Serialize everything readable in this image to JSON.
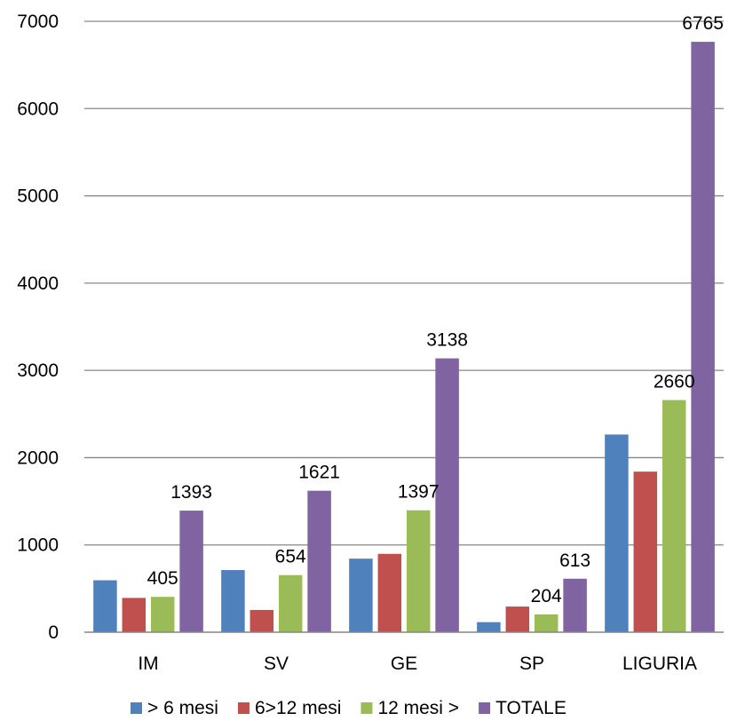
{
  "chart_data": {
    "type": "bar",
    "title": "",
    "xlabel": "",
    "ylabel": "",
    "categories": [
      "IM",
      "SV",
      "GE",
      "SP",
      "LIGURIA"
    ],
    "ylim": [
      0,
      7000
    ],
    "yticks": [
      0,
      1000,
      2000,
      3000,
      4000,
      5000,
      6000,
      7000
    ],
    "grid": true,
    "legend_position": "bottom",
    "series": [
      {
        "name": "> 6 mesi",
        "color": "#4F81BD",
        "values": [
          595,
          712,
          843,
          115,
          2265
        ],
        "labels": [
          null,
          null,
          null,
          null,
          null
        ]
      },
      {
        "name": "6>12 mesi",
        "color": "#C0504D",
        "values": [
          393,
          255,
          898,
          294,
          1840
        ],
        "labels": [
          null,
          null,
          null,
          null,
          null
        ]
      },
      {
        "name": "12 mesi >",
        "color": "#9BBB59",
        "values": [
          405,
          654,
          1397,
          204,
          2660
        ],
        "labels": [
          "405",
          "654",
          "1397",
          "204",
          "2660"
        ]
      },
      {
        "name": "TOTALE",
        "color": "#8064A2",
        "values": [
          1393,
          1621,
          3138,
          613,
          6765
        ],
        "labels": [
          "1393",
          "1621",
          "3138",
          "613",
          "6765"
        ]
      }
    ]
  }
}
